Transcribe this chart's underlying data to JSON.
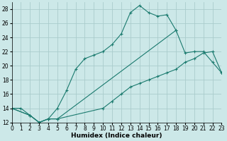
{
  "xlabel": "Humidex (Indice chaleur)",
  "xlim": [
    0,
    23
  ],
  "ylim": [
    12,
    29
  ],
  "xtick_labels": [
    "0",
    "1",
    "2",
    "3",
    "4",
    "5",
    "6",
    "7",
    "8",
    "9",
    "10",
    "11",
    "12",
    "13",
    "14",
    "15",
    "16",
    "17",
    "18",
    "19",
    "20",
    "21",
    "22",
    "23"
  ],
  "yticks": [
    12,
    14,
    16,
    18,
    20,
    22,
    24,
    26,
    28
  ],
  "bg_color": "#cce8e8",
  "grid_color": "#aacccc",
  "line_color": "#1a7a6e",
  "curve1_x": [
    0,
    1,
    2,
    3,
    4,
    5,
    6,
    7,
    8,
    9,
    10,
    11,
    12,
    13,
    14,
    15,
    16,
    17,
    18
  ],
  "curve1_y": [
    14.0,
    14.0,
    13.0,
    12.0,
    12.5,
    14.0,
    16.5,
    19.5,
    21.0,
    21.5,
    22.0,
    23.0,
    24.5,
    27.5,
    28.5,
    27.5,
    27.0,
    27.2,
    25.0
  ],
  "curve2_x": [
    0,
    2,
    3,
    4,
    5,
    18,
    19,
    20,
    21,
    22,
    23
  ],
  "curve2_y": [
    14.0,
    13.0,
    12.0,
    12.5,
    12.5,
    25.0,
    21.8,
    22.0,
    22.0,
    20.5,
    19.0
  ],
  "curve3_x": [
    0,
    2,
    3,
    4,
    5,
    10,
    11,
    12,
    13,
    14,
    15,
    16,
    17,
    18,
    19,
    20,
    21,
    22,
    23
  ],
  "curve3_y": [
    14.0,
    13.0,
    12.0,
    12.5,
    12.5,
    14.0,
    15.0,
    16.0,
    17.0,
    17.5,
    18.0,
    18.5,
    19.0,
    19.5,
    20.5,
    21.0,
    21.8,
    22.0,
    19.0
  ]
}
